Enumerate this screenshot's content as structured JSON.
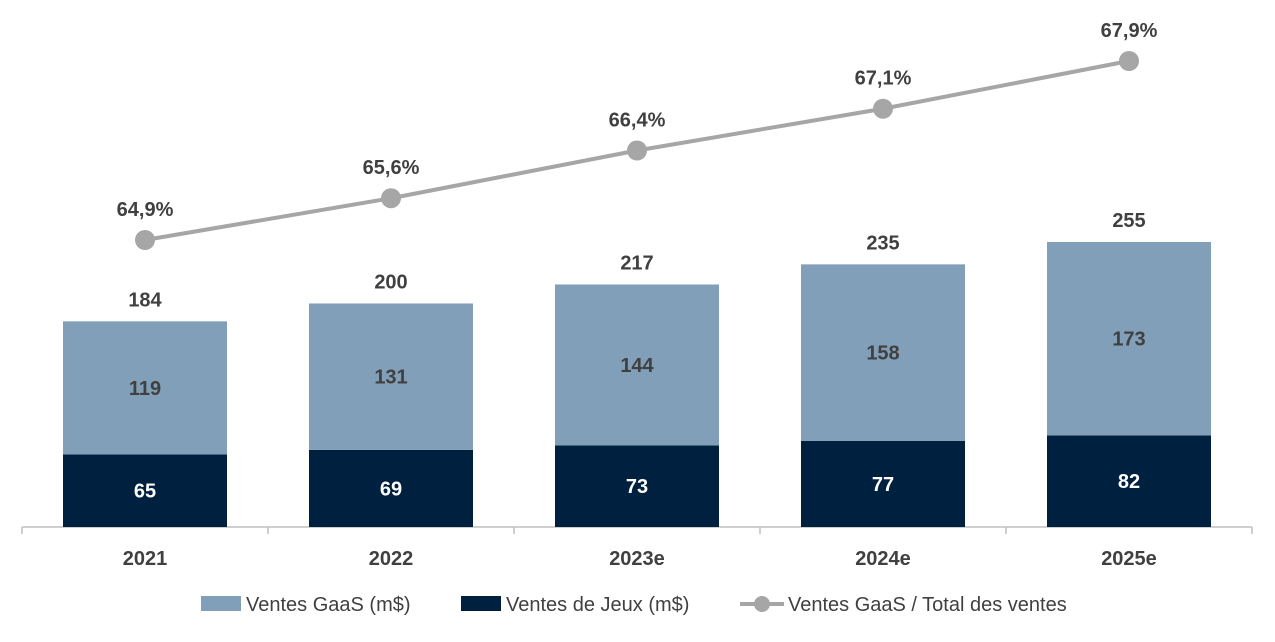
{
  "chart_data": {
    "type": "bar",
    "stacked": true,
    "categories": [
      "2021",
      "2022",
      "2023e",
      "2024e",
      "2025e"
    ],
    "series": [
      {
        "name": "Ventes de Jeux (m$)",
        "kind": "bar",
        "color": "#002040",
        "values": [
          65,
          69,
          73,
          77,
          82
        ],
        "labels": [
          "65",
          "69",
          "73",
          "77",
          "82"
        ]
      },
      {
        "name": "Ventes GaaS (m$)",
        "kind": "bar",
        "color": "#819FB8",
        "values": [
          119,
          131,
          144,
          158,
          173
        ],
        "labels": [
          "119",
          "131",
          "144",
          "158",
          "173"
        ]
      },
      {
        "name": "Ventes GaaS / Total des ventes",
        "kind": "line",
        "color": "#A6A6A6",
        "values": [
          64.9,
          65.6,
          66.4,
          67.1,
          67.9
        ],
        "labels": [
          "64,9%",
          "65,6%",
          "66,4%",
          "67,1%",
          "67,9%"
        ]
      }
    ],
    "totals": [
      184,
      200,
      217,
      235,
      255
    ],
    "total_labels": [
      "184",
      "200",
      "217",
      "235",
      "255"
    ],
    "legend": [
      {
        "label": "Ventes GaaS (m$)",
        "marker": "box",
        "color": "#819FB8"
      },
      {
        "label": "Ventes de Jeux (m$)",
        "marker": "box",
        "color": "#002040"
      },
      {
        "label": "Ventes GaaS / Total des ventes",
        "marker": "line",
        "color": "#A6A6A6"
      }
    ],
    "legend_position": "bottom",
    "grid": false,
    "ylim": [
      0,
      255
    ],
    "y2lim": [
      64.9,
      67.9
    ]
  }
}
